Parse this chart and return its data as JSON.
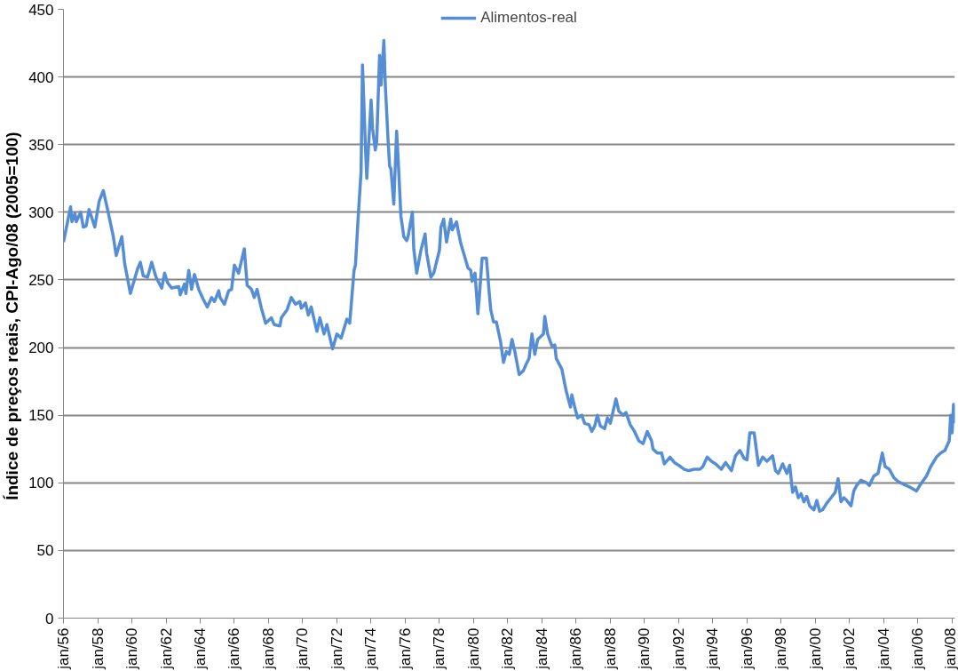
{
  "chart_data": {
    "type": "line",
    "ylabel": "Índice de preços reais,  CPI-Ago/08 (2005=100)",
    "legend": "top",
    "grid": "y",
    "x": [
      "1956-01",
      "1956-06",
      "1956-07",
      "1956-09",
      "1956-10",
      "1957-01",
      "1957-03",
      "1957-05",
      "1957-07",
      "1957-11",
      "1958-02",
      "1958-05",
      "1958-08",
      "1958-12",
      "1959-02",
      "1959-06",
      "1959-08",
      "1959-12",
      "1960-05",
      "1960-07",
      "1960-09",
      "1960-12",
      "1961-03",
      "1961-06",
      "1961-10",
      "1961-12",
      "1962-02",
      "1962-05",
      "1962-10",
      "1962-11",
      "1963-02",
      "1963-03",
      "1963-05",
      "1963-07",
      "1963-09",
      "1963-12",
      "1964-03",
      "1964-06",
      "1964-09",
      "1964-11",
      "1965-02",
      "1965-03",
      "1965-06",
      "1965-09",
      "1965-11",
      "1966-01",
      "1966-04",
      "1966-08",
      "1966-10",
      "1967-01",
      "1967-03",
      "1967-05",
      "1967-08",
      "1967-11",
      "1968-03",
      "1968-05",
      "1968-09",
      "1968-10",
      "1969-02",
      "1969-05",
      "1969-08",
      "1969-11",
      "1969-12",
      "1970-03",
      "1970-05",
      "1970-07",
      "1970-11",
      "1971-01",
      "1971-04",
      "1971-06",
      "1971-10",
      "1972-01",
      "1972-04",
      "1972-08",
      "1972-10",
      "1973-01",
      "1973-02",
      "1973-04",
      "1973-06",
      "1973-07",
      "1973-09",
      "1973-10",
      "1974-01",
      "1974-02",
      "1974-04",
      "1974-05",
      "1974-07",
      "1974-08",
      "1974-10",
      "1974-11",
      "1975-01",
      "1975-02",
      "1975-03",
      "1975-05",
      "1975-07",
      "1975-08",
      "1975-10",
      "1975-12",
      "1976-02",
      "1976-03",
      "1976-06",
      "1976-07",
      "1976-09",
      "1976-12",
      "1977-03",
      "1977-04",
      "1977-07",
      "1977-09",
      "1978-01",
      "1978-02",
      "1978-04",
      "1978-06",
      "1978-09",
      "1978-10",
      "1979-01",
      "1979-02",
      "1979-04",
      "1979-06",
      "1979-09",
      "1979-11",
      "1979-12",
      "1980-02",
      "1980-04",
      "1980-05",
      "1980-07",
      "1980-10",
      "1980-12",
      "1981-01",
      "1981-03",
      "1981-05",
      "1981-08",
      "1981-10",
      "1981-12",
      "1982-02",
      "1982-04",
      "1982-06",
      "1982-09",
      "1982-12",
      "1983-02",
      "1983-04",
      "1983-06",
      "1983-08",
      "1983-10",
      "1984-02",
      "1984-03",
      "1984-05",
      "1984-08",
      "1984-10",
      "1984-11",
      "1985-03",
      "1985-06",
      "1985-09",
      "1985-10",
      "1985-12",
      "1986-02",
      "1986-05",
      "1986-07",
      "1986-10",
      "1986-12",
      "1987-02",
      "1987-04",
      "1987-06",
      "1987-09",
      "1987-11",
      "1988-01",
      "1988-05",
      "1988-07",
      "1988-10",
      "1988-12",
      "1989-03",
      "1989-06",
      "1989-09",
      "1989-12",
      "1990-03",
      "1990-06",
      "1990-07",
      "1990-10",
      "1991-01",
      "1991-03",
      "1991-07",
      "1991-10",
      "1992-01",
      "1992-05",
      "1992-08",
      "1992-12",
      "1993-04",
      "1993-06",
      "1993-09",
      "1993-12",
      "1994-03",
      "1994-07",
      "1994-10",
      "1995-02",
      "1995-05",
      "1995-08",
      "1995-11",
      "1996-01",
      "1996-03",
      "1996-06",
      "1996-09",
      "1996-12",
      "1997-03",
      "1997-07",
      "1997-09",
      "1997-11",
      "1998-02",
      "1998-05",
      "1998-07",
      "1998-09",
      "1998-11",
      "1999-01",
      "1999-03",
      "1999-05",
      "1999-07",
      "1999-09",
      "1999-12",
      "2000-02",
      "2000-04",
      "2000-06",
      "2000-09",
      "2000-12",
      "2001-03",
      "2001-05",
      "2001-07",
      "2001-09",
      "2001-11",
      "2002-02",
      "2002-04",
      "2002-06",
      "2002-09",
      "2003-01",
      "2003-03",
      "2003-06",
      "2003-09",
      "2003-12",
      "2004-02",
      "2004-05",
      "2004-08",
      "2004-11",
      "2005-03",
      "2005-07",
      "2005-12",
      "2006-03",
      "2006-07",
      "2006-10",
      "2007-02",
      "2007-05",
      "2007-08",
      "2007-11",
      "2007-12",
      "2008-01",
      "2008-02",
      "2008-03"
    ],
    "series": [
      {
        "name": "Alimentos-real",
        "color": "#558ed5",
        "values": [
          278,
          304,
          293,
          299,
          293,
          300,
          289,
          290,
          302,
          289,
          308,
          316,
          302,
          282,
          268,
          282,
          262,
          240,
          258,
          263,
          253,
          252,
          263,
          252,
          244,
          255,
          248,
          244,
          245,
          239,
          247,
          240,
          257,
          243,
          254,
          243,
          236,
          230,
          237,
          234,
          242,
          237,
          232,
          242,
          243,
          261,
          255,
          273,
          246,
          243,
          237,
          243,
          229,
          218,
          222,
          217,
          216,
          222,
          228,
          237,
          232,
          234,
          229,
          233,
          224,
          230,
          212,
          222,
          210,
          217,
          199,
          210,
          207,
          221,
          218,
          257,
          261,
          297,
          330,
          409,
          349,
          325,
          383,
          362,
          346,
          352,
          416,
          394,
          427,
          394,
          352,
          334,
          332,
          306,
          360,
          340,
          297,
          282,
          279,
          282,
          300,
          273,
          255,
          272,
          284,
          270,
          252,
          255,
          272,
          289,
          295,
          278,
          295,
          287,
          293,
          287,
          277,
          270,
          259,
          257,
          249,
          255,
          225,
          237,
          266,
          266,
          240,
          228,
          219,
          219,
          204,
          189,
          197,
          195,
          206,
          197,
          180,
          183,
          188,
          192,
          210,
          195,
          206,
          210,
          223,
          210,
          201,
          202,
          192,
          184,
          168,
          156,
          165,
          156,
          148,
          150,
          144,
          143,
          138,
          142,
          150,
          142,
          140,
          148,
          144,
          162,
          153,
          150,
          152,
          143,
          138,
          131,
          129,
          138,
          131,
          125,
          122,
          122,
          114,
          119,
          115,
          113,
          110,
          109,
          110,
          110,
          112,
          119,
          116,
          114,
          110,
          115,
          109,
          120,
          124,
          118,
          117,
          137,
          137,
          113,
          119,
          116,
          120,
          109,
          107,
          114,
          107,
          113,
          93,
          97,
          89,
          92,
          86,
          90,
          83,
          80,
          87,
          79,
          80,
          85,
          89,
          93,
          103,
          86,
          89,
          87,
          83,
          94,
          98,
          102,
          100,
          98,
          105,
          107,
          122,
          112,
          110,
          104,
          101,
          99,
          97,
          94,
          99,
          105,
          112,
          119,
          122,
          124,
          131,
          150,
          137,
          158,
          144
        ]
      }
    ],
    "xlim": [
      "1956-01",
      "2008-03"
    ],
    "ylim": [
      0,
      450
    ],
    "xticks": [
      {
        "value": "1956-01",
        "label": "jan/56"
      },
      {
        "value": "1958-01",
        "label": "jan/58"
      },
      {
        "value": "1960-01",
        "label": "jan/60"
      },
      {
        "value": "1962-01",
        "label": "jan/62"
      },
      {
        "value": "1964-01",
        "label": "jan/64"
      },
      {
        "value": "1966-01",
        "label": "jan/66"
      },
      {
        "value": "1968-01",
        "label": "jan/68"
      },
      {
        "value": "1970-01",
        "label": "jan/70"
      },
      {
        "value": "1972-01",
        "label": "jan/72"
      },
      {
        "value": "1974-01",
        "label": "jan/74"
      },
      {
        "value": "1976-01",
        "label": "jan/76"
      },
      {
        "value": "1978-01",
        "label": "jan/78"
      },
      {
        "value": "1980-01",
        "label": "jan/80"
      },
      {
        "value": "1982-01",
        "label": "jan/82"
      },
      {
        "value": "1984-01",
        "label": "jan/84"
      },
      {
        "value": "1986-01",
        "label": "jan/86"
      },
      {
        "value": "1988-01",
        "label": "jan/88"
      },
      {
        "value": "1990-01",
        "label": "jan/90"
      },
      {
        "value": "1992-01",
        "label": "jan/92"
      },
      {
        "value": "1994-01",
        "label": "jan/94"
      },
      {
        "value": "1996-01",
        "label": "jan/96"
      },
      {
        "value": "1998-01",
        "label": "jan/98"
      },
      {
        "value": "2000-01",
        "label": "jan/00"
      },
      {
        "value": "2002-01",
        "label": "jan/02"
      },
      {
        "value": "2004-01",
        "label": "jan/04"
      },
      {
        "value": "2006-01",
        "label": "jan/06"
      },
      {
        "value": "2008-01",
        "label": "jan/08"
      }
    ],
    "yticks": [
      0,
      50,
      100,
      150,
      200,
      250,
      300,
      350,
      400,
      450
    ]
  }
}
